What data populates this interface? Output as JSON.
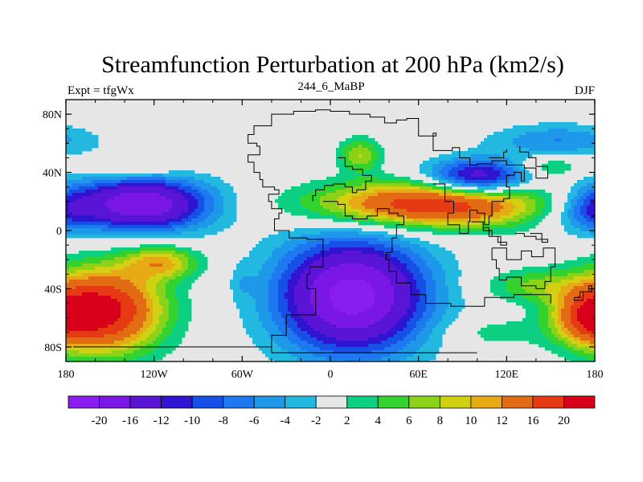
{
  "chart_data": {
    "type": "heatmap",
    "title": "Streamfunction Perturbation at 200 hPa (km2/s)",
    "subtitle_left": "Expt = tfgWx",
    "subtitle_center": "244_6_MaBP",
    "subtitle_right": "DJF",
    "xlim": [
      -180,
      180
    ],
    "ylim": [
      -90,
      90
    ],
    "x_ticks": [
      {
        "value": -180,
        "label": "180"
      },
      {
        "value": -120,
        "label": "120W"
      },
      {
        "value": -60,
        "label": "60W"
      },
      {
        "value": 0,
        "label": "0"
      },
      {
        "value": 60,
        "label": "60E"
      },
      {
        "value": 120,
        "label": "120E"
      },
      {
        "value": 180,
        "label": "180"
      }
    ],
    "y_ticks": [
      {
        "value": 80,
        "label": "80N"
      },
      {
        "value": 40,
        "label": "40N"
      },
      {
        "value": 0,
        "label": "0"
      },
      {
        "value": -40,
        "label": "40S"
      },
      {
        "value": -80,
        "label": "80S"
      }
    ],
    "colorbar": {
      "colors": [
        "#8a1ef0",
        "#7a17e6",
        "#5a14d6",
        "#2f14d2",
        "#1650e6",
        "#1e78f0",
        "#1e98e8",
        "#22b8e0",
        "#e6e6e6",
        "#0ccf82",
        "#34d22e",
        "#8cd218",
        "#d2d012",
        "#e6aa14",
        "#e26c14",
        "#e63a14",
        "#d8001a"
      ],
      "labels": [
        "-20",
        "-16",
        "-12",
        "-10",
        "-8",
        "-6",
        "-4",
        "-2",
        "2",
        "4",
        "6",
        "8",
        "10",
        "12",
        "16",
        "20"
      ]
    },
    "features": [
      {
        "lon": 155,
        "lat": 62,
        "amp": -6,
        "sx": 32,
        "sy": 8
      },
      {
        "lon": 20,
        "lat": 52,
        "amp": 8,
        "sx": 10,
        "sy": 8
      },
      {
        "lon": 100,
        "lat": 36,
        "amp": -16,
        "sx": 25,
        "sy": 9
      },
      {
        "lon": 150,
        "lat": 44,
        "amp": 5,
        "sx": 15,
        "sy": 5
      },
      {
        "lon": -140,
        "lat": 42,
        "amp": 3,
        "sx": 20,
        "sy": 5
      },
      {
        "lon": -115,
        "lat": 45,
        "amp": 2,
        "sx": 15,
        "sy": 4
      },
      {
        "lon": -130,
        "lat": 18,
        "amp": -20,
        "sx": 34,
        "sy": 13
      },
      {
        "lon": 70,
        "lat": 18,
        "amp": 20,
        "sx": 55,
        "sy": 11
      },
      {
        "lon": 178,
        "lat": 15,
        "amp": -3,
        "sx": 14,
        "sy": 12
      },
      {
        "lon": -180,
        "lat": 15,
        "amp": -3,
        "sx": 14,
        "sy": 12
      },
      {
        "lon": 160,
        "lat": 12,
        "amp": -3,
        "sx": 20,
        "sy": 10
      },
      {
        "lon": -155,
        "lat": -55,
        "amp": 22,
        "sx": 28,
        "sy": 20
      },
      {
        "lon": -115,
        "lat": -22,
        "amp": 10,
        "sx": 18,
        "sy": 8
      },
      {
        "lon": 15,
        "lat": -45,
        "amp": -22,
        "sx": 36,
        "sy": 28
      },
      {
        "lon": 175,
        "lat": -60,
        "amp": 12,
        "sx": 16,
        "sy": 12
      },
      {
        "lon": 140,
        "lat": -38,
        "amp": 6,
        "sx": 25,
        "sy": 8
      },
      {
        "lon": 110,
        "lat": -70,
        "amp": 3,
        "sx": 25,
        "sy": 8
      },
      {
        "lon": -60,
        "lat": -35,
        "amp": -2,
        "sx": 5,
        "sy": 8
      }
    ],
    "coastlines": [
      [
        [
          -36,
          80
        ],
        [
          -25,
          82
        ],
        [
          -10,
          83
        ],
        [
          0,
          82
        ],
        [
          13,
          80
        ],
        [
          27,
          78
        ],
        [
          37,
          74
        ],
        [
          45,
          76
        ],
        [
          52,
          77
        ],
        [
          60,
          73
        ],
        [
          60,
          65
        ],
        [
          72,
          67
        ],
        [
          70,
          55
        ],
        [
          83,
          57
        ],
        [
          88,
          50
        ],
        [
          95,
          45
        ],
        [
          100,
          46
        ],
        [
          110,
          48
        ],
        [
          120,
          45
        ],
        [
          132,
          43
        ],
        [
          140,
          36
        ],
        [
          148,
          44
        ],
        [
          140,
          50
        ],
        [
          135,
          54
        ],
        [
          129,
          58
        ]
      ],
      [
        [
          -36,
          80
        ],
        [
          -40,
          72
        ],
        [
          -52,
          66
        ],
        [
          -56,
          60
        ],
        [
          -50,
          58
        ],
        [
          -48,
          52
        ],
        [
          -56,
          47
        ],
        [
          -52,
          40
        ],
        [
          -48,
          35
        ],
        [
          -46,
          30
        ],
        [
          -38,
          28
        ],
        [
          -35,
          25
        ],
        [
          -42,
          20
        ],
        [
          -40,
          15
        ],
        [
          -33,
          12
        ],
        [
          -35,
          8
        ],
        [
          -38,
          0
        ],
        [
          -28,
          -5
        ],
        [
          -16,
          -6
        ],
        [
          -5,
          -15
        ],
        [
          -5,
          -25
        ],
        [
          -14,
          -30
        ],
        [
          -16,
          -40
        ],
        [
          -10,
          -48
        ],
        [
          -10,
          -58
        ],
        [
          -30,
          -72
        ],
        [
          -40,
          -84
        ]
      ],
      [
        [
          -40,
          -84
        ],
        [
          -12,
          -84
        ],
        [
          38,
          -84
        ],
        [
          100,
          -84
        ]
      ],
      [
        [
          5,
          50
        ],
        [
          10,
          44
        ],
        [
          15,
          42
        ],
        [
          22,
          38
        ],
        [
          28,
          34
        ],
        [
          24,
          28
        ],
        [
          18,
          26
        ],
        [
          15,
          30
        ],
        [
          10,
          32
        ],
        [
          2,
          31
        ],
        [
          -4,
          28
        ],
        [
          -10,
          24
        ],
        [
          -12,
          20
        ]
      ],
      [
        [
          -5,
          20
        ],
        [
          5,
          18
        ],
        [
          10,
          10
        ],
        [
          15,
          8
        ],
        [
          25,
          10
        ],
        [
          32,
          15
        ],
        [
          40,
          12
        ],
        [
          46,
          10
        ],
        [
          50,
          4
        ],
        [
          45,
          -5
        ],
        [
          42,
          -15
        ],
        [
          38,
          -20
        ],
        [
          40,
          -28
        ],
        [
          45,
          -36
        ],
        [
          55,
          -44
        ],
        [
          65,
          -50
        ],
        [
          82,
          -52
        ],
        [
          105,
          -46
        ],
        [
          125,
          -44
        ],
        [
          140,
          -44
        ],
        [
          150,
          -50
        ]
      ],
      [
        [
          70,
          32
        ],
        [
          78,
          20
        ],
        [
          84,
          12
        ],
        [
          80,
          4
        ],
        [
          88,
          -2
        ],
        [
          94,
          6
        ],
        [
          95,
          14
        ],
        [
          100,
          12
        ],
        [
          105,
          4
        ],
        [
          108,
          10
        ],
        [
          110,
          20
        ],
        [
          118,
          22
        ],
        [
          122,
          30
        ],
        [
          120,
          38
        ],
        [
          125,
          40
        ],
        [
          130,
          34
        ],
        [
          132,
          42
        ]
      ],
      [
        [
          110,
          -12
        ],
        [
          120,
          -20
        ],
        [
          130,
          -14
        ],
        [
          137,
          -18
        ],
        [
          145,
          -12
        ],
        [
          153,
          -25
        ],
        [
          150,
          -35
        ],
        [
          146,
          -40
        ],
        [
          140,
          -38
        ],
        [
          130,
          -32
        ],
        [
          120,
          -34
        ],
        [
          115,
          -26
        ],
        [
          113,
          -20
        ],
        [
          110,
          -12
        ]
      ],
      [
        [
          96,
          6
        ],
        [
          104,
          2
        ],
        [
          108,
          -4
        ],
        [
          114,
          -8
        ],
        [
          120,
          -10
        ],
        [
          116,
          -4
        ],
        [
          110,
          0
        ],
        [
          104,
          4
        ]
      ],
      [
        [
          166,
          -46
        ],
        [
          170,
          -42
        ],
        [
          176,
          -38
        ],
        [
          178,
          -42
        ],
        [
          172,
          -48
        ],
        [
          166,
          -46
        ]
      ],
      [
        [
          126,
          -2
        ],
        [
          132,
          -4
        ],
        [
          140,
          -6
        ],
        [
          148,
          -8
        ],
        [
          144,
          -2
        ],
        [
          136,
          -2
        ]
      ],
      [
        [
          108,
          50
        ],
        [
          118,
          54
        ],
        [
          120,
          56
        ]
      ],
      [
        [
          -175,
          -80
        ],
        [
          -120,
          -80
        ],
        [
          -60,
          -80
        ],
        [
          -40,
          -80
        ]
      ]
    ]
  }
}
